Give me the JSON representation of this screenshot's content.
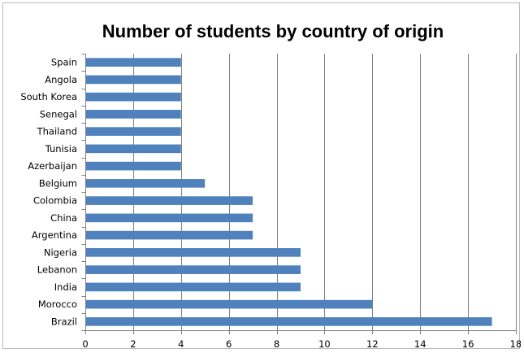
{
  "chart_data": {
    "type": "bar",
    "orientation": "horizontal",
    "title": "Number of students by country of origin",
    "xlabel": "",
    "ylabel": "",
    "categories": [
      "Spain",
      "Angola",
      "South Korea",
      "Senegal",
      "Thailand",
      "Tunisia",
      "Azerbaijan",
      "Belgium",
      "Colombia",
      "China",
      "Argentina",
      "Nigeria",
      "Lebanon",
      "India",
      "Morocco",
      "Brazil"
    ],
    "values": [
      4,
      4,
      4,
      4,
      4,
      4,
      4,
      5,
      7,
      7,
      7,
      9,
      9,
      9,
      12,
      17
    ],
    "xlim": [
      0,
      18
    ],
    "x_ticks": [
      0,
      2,
      4,
      6,
      8,
      10,
      12,
      14,
      16,
      18
    ],
    "grid": "vertical",
    "legend": "none",
    "bar_color": "#4F81BD",
    "grid_color": "#808080"
  }
}
